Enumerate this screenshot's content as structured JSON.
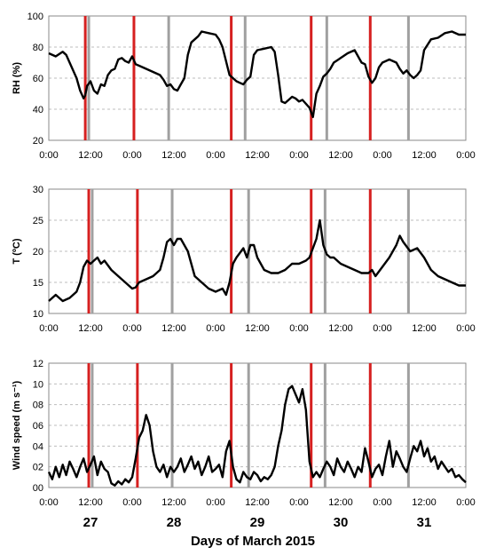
{
  "figure": {
    "xlabel": "Days of March 2015",
    "day_labels": [
      "27",
      "28",
      "29",
      "30",
      "31"
    ]
  },
  "colors": {
    "line": "#000000",
    "red_marker": "#d62020",
    "gray_marker": "#a0a0a0",
    "grid": "#bdbdbd",
    "frame": "#8a8a8a"
  },
  "chart_data": [
    {
      "type": "line",
      "ylabel": "RH (%)",
      "ylim": [
        20,
        100
      ],
      "yticks": [
        "100",
        "80",
        "60",
        "40",
        "20"
      ],
      "xticks": [
        "0:00",
        "12:00",
        "0:00",
        "12:00",
        "0:00",
        "12:00",
        "0:00",
        "12:00",
        "0:00",
        "12:00",
        "0:00"
      ],
      "xlim_hours": [
        0,
        120
      ],
      "red_lines_hours": [
        10.5,
        24.5,
        52.5,
        75.5,
        92.5
      ],
      "gray_lines_hours": [
        11.5,
        34.5,
        56.5,
        80,
        103.5
      ],
      "series": [
        {
          "x": [
            0,
            2,
            4,
            5,
            6,
            8,
            9,
            10,
            10.5,
            11,
            12,
            13,
            14,
            15,
            16,
            17,
            18,
            19,
            20,
            21,
            22,
            23,
            24,
            25,
            26,
            28,
            30,
            32,
            33,
            34,
            35,
            36,
            37,
            38,
            39,
            40,
            41,
            42,
            43,
            44,
            46,
            48,
            49,
            50,
            52,
            53,
            54,
            55,
            56,
            57,
            58,
            59,
            60,
            62,
            64,
            65,
            66,
            67,
            68,
            69,
            70,
            71,
            72,
            73,
            75,
            76,
            77,
            78,
            79,
            80,
            81,
            82,
            84,
            86,
            88,
            89,
            90,
            91,
            92,
            93,
            94,
            95,
            96,
            98,
            100,
            101,
            102,
            103,
            104,
            105,
            106,
            107,
            108,
            110,
            112,
            114,
            116,
            118,
            120
          ],
          "y": [
            76,
            74,
            77,
            75,
            70,
            60,
            52,
            47,
            49,
            55,
            58,
            52,
            50,
            56,
            55,
            62,
            65,
            66,
            72,
            73,
            71,
            70,
            74,
            69,
            68,
            66,
            64,
            62,
            59,
            55,
            56,
            53,
            52,
            56,
            60,
            75,
            83,
            85,
            87,
            90,
            89,
            88,
            85,
            80,
            62,
            60,
            58,
            57,
            56,
            59,
            61,
            75,
            78,
            79,
            80,
            77,
            62,
            45,
            44,
            46,
            48,
            47,
            45,
            46,
            41,
            35,
            50,
            55,
            61,
            63,
            66,
            70,
            73,
            76,
            78,
            74,
            70,
            69,
            61,
            57,
            60,
            67,
            70,
            72,
            70,
            66,
            63,
            65,
            62,
            60,
            62,
            65,
            78,
            85,
            86,
            89,
            90,
            88,
            88
          ]
        }
      ]
    },
    {
      "type": "line",
      "ylabel": "T (ºC)",
      "ylim": [
        10,
        30
      ],
      "yticks": [
        "30",
        "25",
        "20",
        "15",
        "10"
      ],
      "xticks": [
        "0:00",
        "12:00",
        "0:00",
        "12:00",
        "0:00",
        "12:00",
        "0:00",
        "12:00",
        "0:00",
        "12:00",
        "0:00"
      ],
      "xlim_hours": [
        0,
        120
      ],
      "red_lines_hours": [
        11.5,
        25.5,
        52.5,
        75.5,
        92.5
      ],
      "gray_lines_hours": [
        12.5,
        35.5,
        57.5,
        79.5,
        103.5
      ],
      "series": [
        {
          "x": [
            0,
            2,
            4,
            6,
            8,
            9,
            10,
            11,
            12,
            13,
            14,
            15,
            16,
            18,
            20,
            22,
            24,
            25,
            26,
            28,
            30,
            32,
            33,
            34,
            35,
            36,
            37,
            38,
            40,
            42,
            44,
            46,
            48,
            50,
            51,
            52,
            53,
            54,
            56,
            57,
            58,
            59,
            60,
            62,
            64,
            66,
            68,
            70,
            72,
            74,
            75,
            76,
            77,
            78,
            79,
            80,
            81,
            82,
            84,
            86,
            88,
            90,
            92,
            93,
            94,
            96,
            98,
            100,
            101,
            102,
            104,
            106,
            108,
            110,
            112,
            114,
            116,
            118,
            120
          ],
          "y": [
            12,
            13,
            12,
            12.5,
            13.5,
            15,
            17.5,
            18.5,
            18,
            18.5,
            19,
            18,
            18.5,
            17,
            16,
            15,
            14,
            14.2,
            15,
            15.5,
            16,
            17,
            19,
            21.5,
            22,
            21,
            22,
            22,
            20,
            16,
            15,
            14,
            13.5,
            14,
            13,
            15,
            18,
            19,
            20.5,
            19,
            21,
            21,
            19,
            17,
            16.5,
            16.5,
            17,
            18,
            18,
            18.5,
            19,
            20.5,
            22,
            25,
            21,
            19.5,
            19,
            19,
            18,
            17.5,
            17,
            16.5,
            16.5,
            17,
            16,
            17.5,
            19,
            21,
            22.5,
            21.5,
            20,
            20.5,
            19,
            17,
            16,
            15.5,
            15,
            14.5,
            14.5
          ]
        }
      ]
    },
    {
      "type": "line",
      "ylabel": "Wind speed (m s⁻¹)",
      "ylim": [
        0,
        12
      ],
      "yticks": [
        "12",
        "10",
        "08",
        "06",
        "04",
        "02",
        "00"
      ],
      "xticks": [
        "0:00",
        "12:00",
        "0:00",
        "12:00",
        "0:00",
        "12:00",
        "0:00",
        "12:00",
        "0:00",
        "12:00",
        "0:00"
      ],
      "xlim_hours": [
        0,
        120
      ],
      "red_lines_hours": [
        11.5,
        25.5,
        52.5,
        75.5,
        92.5
      ],
      "gray_lines_hours": [
        12.5,
        35.5,
        57.5,
        79.5,
        103.5
      ],
      "series": [
        {
          "x": [
            0,
            1,
            2,
            3,
            4,
            5,
            6,
            7,
            8,
            9,
            10,
            11,
            12,
            13,
            14,
            15,
            16,
            17,
            18,
            19,
            20,
            21,
            22,
            23,
            24,
            25,
            26,
            27,
            28,
            29,
            30,
            31,
            32,
            33,
            34,
            35,
            36,
            37,
            38,
            39,
            40,
            41,
            42,
            43,
            44,
            45,
            46,
            47,
            48,
            49,
            50,
            51,
            52,
            53,
            54,
            55,
            56,
            57,
            58,
            59,
            60,
            61,
            62,
            63,
            64,
            65,
            66,
            67,
            68,
            69,
            70,
            71,
            72,
            73,
            74,
            75,
            76,
            77,
            78,
            79,
            80,
            81,
            82,
            83,
            84,
            85,
            86,
            87,
            88,
            89,
            90,
            91,
            92,
            93,
            94,
            95,
            96,
            97,
            98,
            99,
            100,
            101,
            102,
            103,
            104,
            105,
            106,
            107,
            108,
            109,
            110,
            111,
            112,
            113,
            114,
            115,
            116,
            117,
            118,
            119,
            120
          ],
          "y": [
            1.5,
            0.8,
            2.0,
            1.0,
            2.2,
            1.2,
            2.5,
            1.8,
            1.0,
            2.0,
            2.8,
            1.5,
            2.2,
            3.0,
            1.2,
            2.5,
            1.8,
            1.5,
            0.4,
            0.2,
            0.6,
            0.3,
            0.8,
            0.5,
            1.0,
            2.8,
            4.8,
            5.5,
            7.0,
            6.0,
            3.5,
            2.0,
            1.5,
            2.2,
            1.0,
            2.0,
            1.5,
            2.0,
            2.8,
            1.5,
            2.2,
            3.0,
            1.8,
            2.5,
            1.2,
            2.0,
            3.0,
            1.5,
            1.8,
            2.2,
            1.0,
            3.5,
            4.5,
            2.0,
            0.8,
            0.5,
            1.5,
            1.0,
            0.8,
            1.5,
            1.2,
            0.6,
            1.0,
            0.8,
            1.2,
            2.0,
            4.0,
            5.5,
            8.0,
            9.5,
            9.8,
            9.0,
            8.2,
            9.5,
            7.5,
            2.5,
            1.0,
            1.5,
            1.0,
            1.8,
            2.5,
            2.0,
            1.2,
            2.8,
            2.0,
            1.5,
            2.5,
            1.8,
            1.0,
            2.0,
            1.5,
            3.8,
            2.5,
            1.0,
            1.8,
            2.2,
            1.2,
            3.0,
            4.5,
            2.0,
            3.5,
            2.8,
            2.0,
            1.5,
            2.8,
            4.0,
            3.5,
            4.5,
            3.0,
            3.8,
            2.5,
            3.0,
            1.8,
            2.5,
            2.0,
            1.5,
            1.8,
            1.0,
            1.2,
            0.8,
            0.5
          ]
        }
      ]
    }
  ]
}
